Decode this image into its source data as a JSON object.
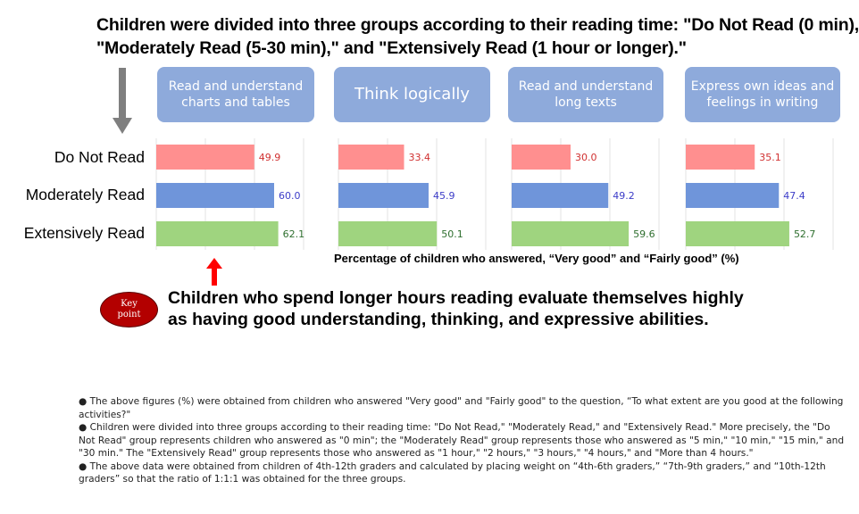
{
  "title_lines": [
    "Children were divided into three groups according to their reading time: \"Do Not Read (0 min),\"",
    "\"Moderately Read (5-30 min),\" and \"Extensively Read (1 hour or longer).\""
  ],
  "category_headers": [
    "Read and understand charts and tables",
    "Think logically",
    "Read and understand long texts",
    "Express own ideas and feelings in writing"
  ],
  "chart_data": {
    "type": "bar",
    "orientation": "horizontal",
    "groups": [
      "Do Not Read",
      "Moderately Read",
      "Extensively Read"
    ],
    "group_colors": [
      "#ff8f8f",
      "#6f95da",
      "#9fd47f"
    ],
    "value_label_colors": [
      "#d03030",
      "#3c3cc8",
      "#2f6f2f"
    ],
    "xlim": [
      0,
      100
    ],
    "xlabel": "Percentage of children who answered, “Very good” and “Fairly good” (%)",
    "panels": [
      {
        "category": "Read and understand charts and tables",
        "values": [
          49.9,
          60.0,
          62.1
        ],
        "labels": [
          "49.9",
          "60.0",
          "62.1"
        ]
      },
      {
        "category": "Think logically",
        "values": [
          33.4,
          45.9,
          50.1
        ],
        "labels": [
          "33.4",
          "45.9",
          "50.1"
        ]
      },
      {
        "category": "Read and understand long texts",
        "values": [
          30.0,
          49.2,
          59.6
        ],
        "labels": [
          "30.0",
          "49.2",
          "59.6"
        ]
      },
      {
        "category": "Express own ideas and feelings in writing",
        "values": [
          35.1,
          47.4,
          52.7
        ],
        "labels": [
          "35.1",
          "47.4",
          "52.7"
        ]
      }
    ]
  },
  "key_point_badge": [
    "Key",
    "point"
  ],
  "key_message_lines": [
    "Children who spend longer hours reading evaluate themselves highly",
    "as having good understanding, thinking, and expressive abilities."
  ],
  "notes": [
    "● The above figures (%) were obtained from children who answered \"Very good\" and \"Fairly good\" to the question, “To what extent are you good at the following activities?\"",
    "● Children were divided into three groups according to their reading time: \"Do Not Read,\" \"Moderately Read,\" and \"Extensively Read.\" More precisely, the \"Do Not Read\" group represents children who answered as \"0 min\"; the \"Moderately Read\" group represents those who answered as \"5 min,\" \"10 min,\" \"15 min,\" and \"30 min.\" The \"Extensively Read\" group represents those who answered as \"1 hour,\" \"2 hours,\" \"3 hours,\" \"4 hours,\" and \"More than 4 hours.\"",
    "● The above data were obtained from children of 4th-12th graders and calculated by placing weight on “4th-6th graders,” “7th-9th graders,” and “10th-12th graders” so that the ratio of 1:1:1 was obtained for the three groups."
  ]
}
